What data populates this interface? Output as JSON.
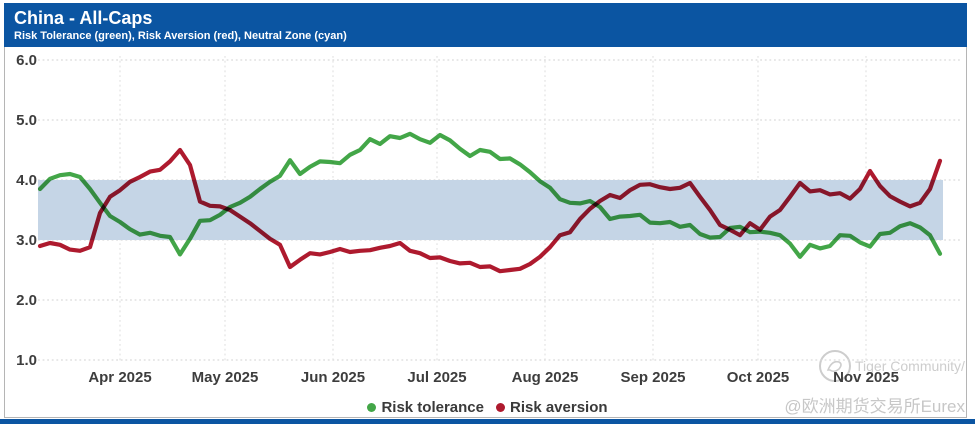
{
  "header": {
    "title": "China - All-Caps",
    "subtitle": "Risk Tolerance (green), Risk Aversion (red), Neutral Zone (cyan)"
  },
  "watermark": {
    "brand": "Tiger Community/",
    "handle": "@欧洲期货交易所Eurex"
  },
  "colors": {
    "header_blue": "#0b55a2",
    "neutral_zone": "#c5d5e6",
    "risk_tolerance_green": "#43a648",
    "risk_aversion_red": "#ae1a2e",
    "grid_gray": "#d9d9d9",
    "axis_text": "#3d3d3d",
    "watermark_gray": "#c9c9c9"
  },
  "chart_data": {
    "type": "line",
    "title": "China - All-Caps",
    "subtitle": "Risk Tolerance (green), Risk Aversion (red), Neutral Zone (cyan)",
    "ylim": [
      1.0,
      6.0
    ],
    "ytick_labels": [
      "6.0",
      "5.0",
      "4.0",
      "3.0",
      "2.0",
      "1.0"
    ],
    "yticks": [
      6.0,
      5.0,
      4.0,
      3.0,
      2.0,
      1.0
    ],
    "grid": "dotted",
    "legend_position": "bottom-center",
    "neutral_zone": {
      "from": 3.0,
      "to": 4.0,
      "color": "#c5d5e6"
    },
    "x_range": {
      "start": "2025-03-09",
      "end": "2025-11-21",
      "approx_interval_days": 2.9
    },
    "xticks": [
      {
        "label": "Apr 2025",
        "t": 8.0
      },
      {
        "label": "May 2025",
        "t": 18.5
      },
      {
        "label": "Jun 2025",
        "t": 29.3
      },
      {
        "label": "Jul 2025",
        "t": 39.7
      },
      {
        "label": "Aug 2025",
        "t": 50.5
      },
      {
        "label": "Sep 2025",
        "t": 61.3
      },
      {
        "label": "Oct 2025",
        "t": 71.8
      },
      {
        "label": "Nov 2025",
        "t": 82.6
      }
    ],
    "legend": [
      {
        "label": "Risk tolerance",
        "color": "#43a648"
      },
      {
        "label": "Risk aversion",
        "color": "#ae1a2e"
      }
    ],
    "series": [
      {
        "name": "Risk tolerance",
        "color": "#43a648",
        "values": [
          3.85,
          4.02,
          4.08,
          4.1,
          4.05,
          3.85,
          3.62,
          3.4,
          3.3,
          3.18,
          3.09,
          3.12,
          3.07,
          3.05,
          2.76,
          3.02,
          3.32,
          3.33,
          3.42,
          3.55,
          3.62,
          3.72,
          3.85,
          3.97,
          4.07,
          4.33,
          4.1,
          4.22,
          4.31,
          4.3,
          4.28,
          4.42,
          4.5,
          4.68,
          4.6,
          4.73,
          4.7,
          4.77,
          4.68,
          4.62,
          4.75,
          4.66,
          4.52,
          4.4,
          4.5,
          4.47,
          4.35,
          4.36,
          4.26,
          4.13,
          3.98,
          3.87,
          3.68,
          3.62,
          3.61,
          3.65,
          3.55,
          3.35,
          3.39,
          3.4,
          3.42,
          3.29,
          3.28,
          3.3,
          3.22,
          3.25,
          3.1,
          3.04,
          3.05,
          3.2,
          3.22,
          3.13,
          3.14,
          3.12,
          3.08,
          2.94,
          2.72,
          2.92,
          2.86,
          2.9,
          3.08,
          3.07,
          2.96,
          2.89,
          3.1,
          3.12,
          3.23,
          3.28,
          3.21,
          3.08,
          2.77
        ]
      },
      {
        "name": "Risk aversion",
        "color": "#ae1a2e",
        "values": [
          2.9,
          2.95,
          2.92,
          2.84,
          2.82,
          2.88,
          3.45,
          3.72,
          3.83,
          3.97,
          4.05,
          4.14,
          4.17,
          4.31,
          4.5,
          4.25,
          3.64,
          3.57,
          3.56,
          3.5,
          3.39,
          3.28,
          3.15,
          3.02,
          2.92,
          2.55,
          2.67,
          2.78,
          2.76,
          2.8,
          2.85,
          2.8,
          2.82,
          2.83,
          2.87,
          2.9,
          2.95,
          2.82,
          2.78,
          2.7,
          2.71,
          2.65,
          2.61,
          2.62,
          2.55,
          2.56,
          2.48,
          2.5,
          2.52,
          2.6,
          2.72,
          2.88,
          3.08,
          3.13,
          3.35,
          3.52,
          3.65,
          3.75,
          3.7,
          3.83,
          3.92,
          3.93,
          3.88,
          3.85,
          3.87,
          3.95,
          3.72,
          3.5,
          3.25,
          3.17,
          3.08,
          3.28,
          3.17,
          3.39,
          3.5,
          3.72,
          3.95,
          3.81,
          3.83,
          3.76,
          3.78,
          3.69,
          3.85,
          4.15,
          3.9,
          3.73,
          3.64,
          3.56,
          3.62,
          3.85,
          4.32
        ]
      }
    ]
  }
}
